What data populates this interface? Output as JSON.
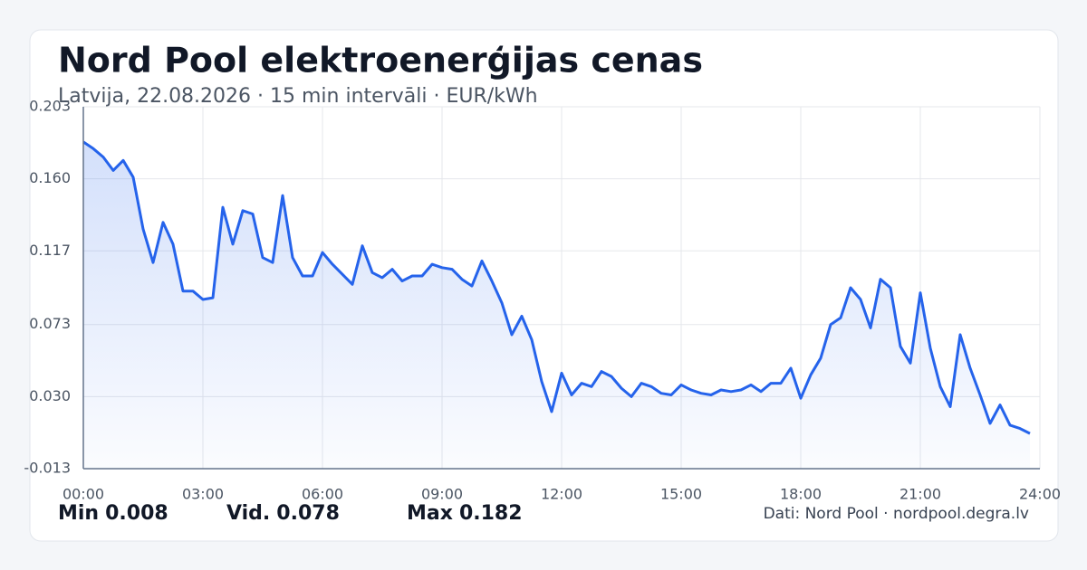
{
  "chart_data": {
    "type": "line",
    "title": "Nord Pool elektroenerģijas cenas",
    "subtitle": "Latvija, 22.08.2026 · 15 min intervāli · EUR/kWh",
    "x": [
      0,
      0.25,
      0.5,
      0.75,
      1,
      1.25,
      1.5,
      1.75,
      2,
      2.25,
      2.5,
      2.75,
      3,
      3.25,
      3.5,
      3.75,
      4,
      4.25,
      4.5,
      4.75,
      5,
      5.25,
      5.5,
      5.75,
      6,
      6.25,
      6.5,
      6.75,
      7,
      7.25,
      7.5,
      7.75,
      8,
      8.25,
      8.5,
      8.75,
      9,
      9.25,
      9.5,
      9.75,
      10,
      10.25,
      10.5,
      10.75,
      11,
      11.25,
      11.5,
      11.75,
      12,
      12.25,
      12.5,
      12.75,
      13,
      13.25,
      13.5,
      13.75,
      14,
      14.25,
      14.5,
      14.75,
      15,
      15.25,
      15.5,
      15.75,
      16,
      16.25,
      16.5,
      16.75,
      17,
      17.25,
      17.5,
      17.75,
      18,
      18.25,
      18.5,
      18.75,
      19,
      19.25,
      19.5,
      19.75,
      20,
      20.25,
      20.5,
      20.75,
      21,
      21.25,
      21.5,
      21.75,
      22,
      22.25,
      22.5,
      22.75,
      23,
      23.25,
      23.5,
      23.75
    ],
    "values": [
      0.182,
      0.178,
      0.173,
      0.165,
      0.171,
      0.161,
      0.13,
      0.11,
      0.134,
      0.121,
      0.093,
      0.093,
      0.088,
      0.089,
      0.143,
      0.121,
      0.141,
      0.139,
      0.113,
      0.11,
      0.15,
      0.113,
      0.102,
      0.102,
      0.116,
      0.109,
      0.103,
      0.097,
      0.12,
      0.104,
      0.101,
      0.106,
      0.099,
      0.102,
      0.102,
      0.109,
      0.107,
      0.106,
      0.1,
      0.096,
      0.111,
      0.099,
      0.086,
      0.067,
      0.078,
      0.064,
      0.039,
      0.021,
      0.044,
      0.031,
      0.038,
      0.036,
      0.045,
      0.042,
      0.035,
      0.03,
      0.038,
      0.036,
      0.032,
      0.031,
      0.037,
      0.034,
      0.032,
      0.031,
      0.034,
      0.033,
      0.034,
      0.037,
      0.033,
      0.038,
      0.038,
      0.047,
      0.029,
      0.043,
      0.053,
      0.073,
      0.077,
      0.095,
      0.088,
      0.071,
      0.1,
      0.095,
      0.06,
      0.05,
      0.092,
      0.059,
      0.036,
      0.024,
      0.067,
      0.047,
      0.031,
      0.014,
      0.025,
      0.013,
      0.011,
      0.008
    ],
    "color": "#2563eb",
    "xlim": [
      0,
      24
    ],
    "xticks": [
      {
        "value": 0,
        "label": "00:00"
      },
      {
        "value": 3,
        "label": "03:00"
      },
      {
        "value": 6,
        "label": "06:00"
      },
      {
        "value": 9,
        "label": "09:00"
      },
      {
        "value": 12,
        "label": "12:00"
      },
      {
        "value": 15,
        "label": "15:00"
      },
      {
        "value": 18,
        "label": "18:00"
      },
      {
        "value": 21,
        "label": "21:00"
      },
      {
        "value": 24,
        "label": "24:00"
      }
    ],
    "ylim": [
      -0.013,
      0.203
    ],
    "yticks": [
      -0.013,
      {
        "value": 0.03,
        "label": "0.030"
      },
      0.073,
      0.117,
      {
        "value": 0.16,
        "label": "0.160"
      },
      0.203
    ],
    "grid": true,
    "stats": [
      {
        "label": "Min",
        "value": 0.008
      },
      {
        "label": "Vid.",
        "value": 0.078
      },
      {
        "label": "Max",
        "value": 0.182
      }
    ],
    "source": "Dati: Nord Pool · nordpool.degra.lv"
  }
}
